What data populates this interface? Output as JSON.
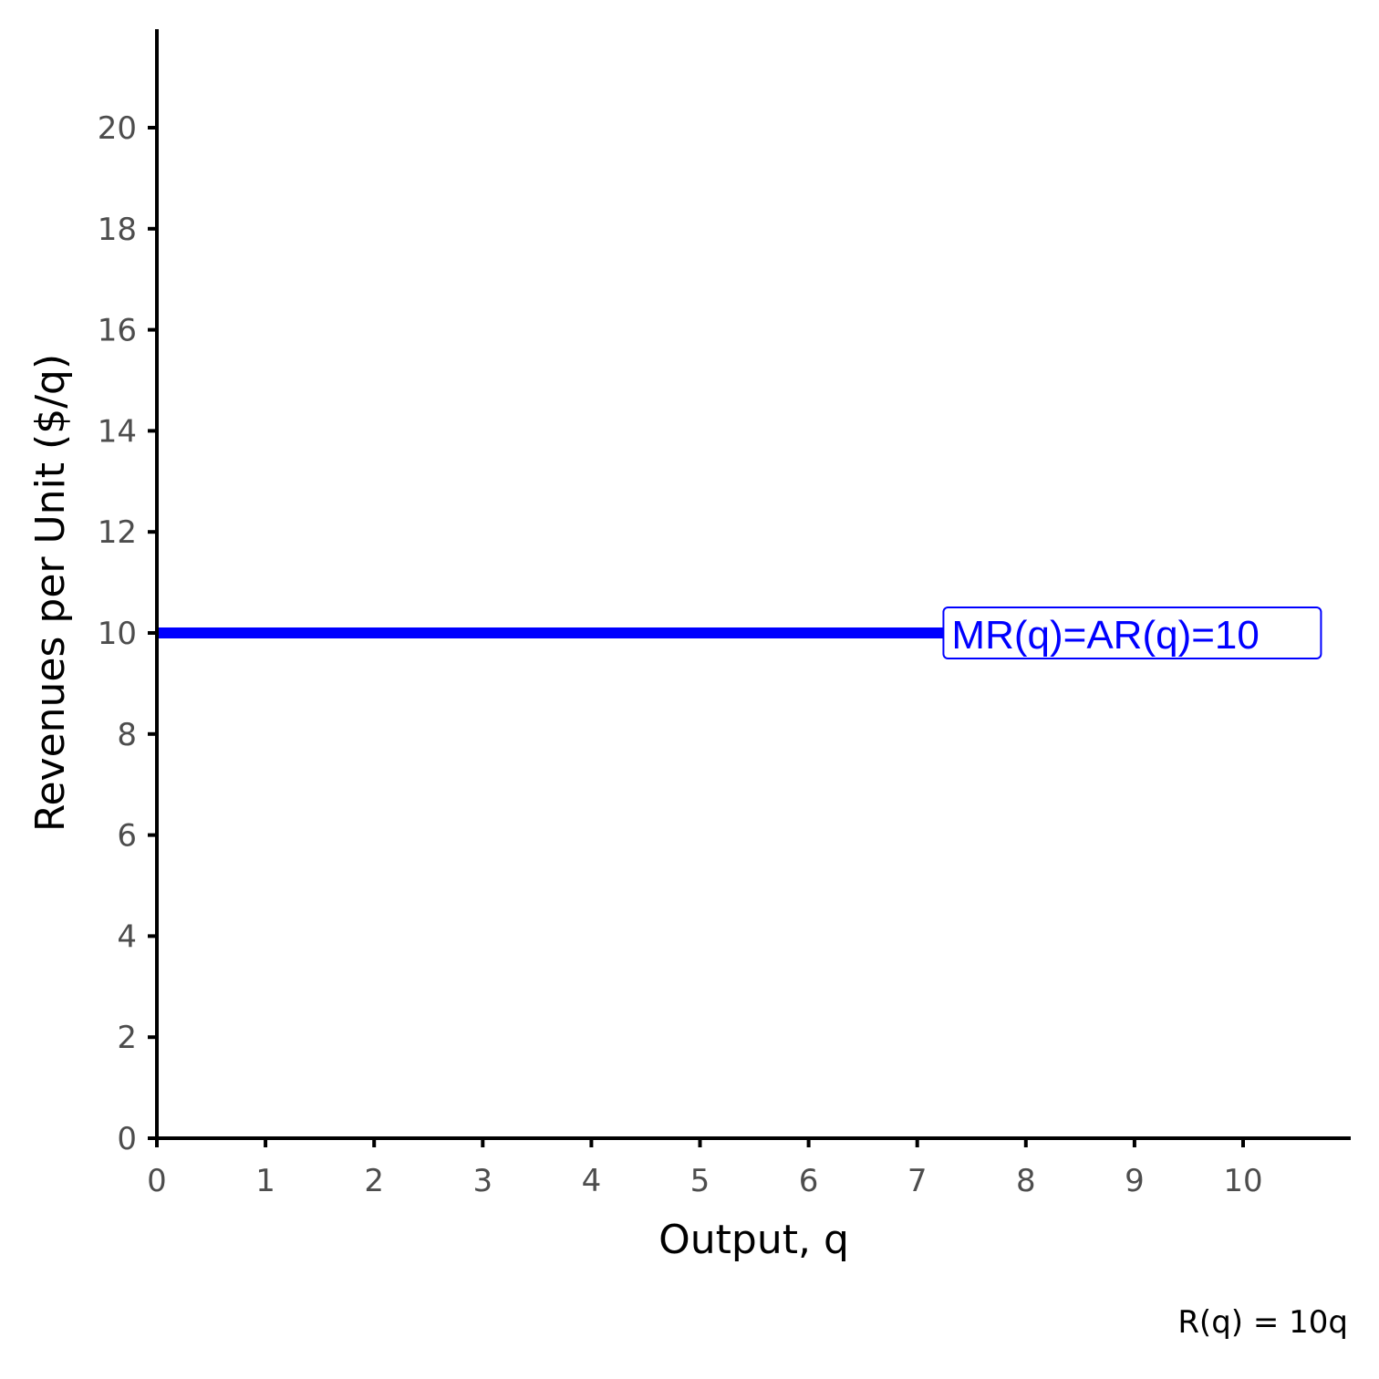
{
  "chart_data": {
    "type": "line",
    "xlabel": "Output, q",
    "ylabel": "Revenues per Unit ($/q)",
    "xlim": [
      0,
      11
    ],
    "ylim": [
      0,
      22
    ],
    "x_ticks": [
      "0",
      "1",
      "2",
      "3",
      "4",
      "5",
      "6",
      "7",
      "8",
      "9",
      "10"
    ],
    "y_ticks": [
      "0",
      "2",
      "4",
      "6",
      "8",
      "10",
      "12",
      "14",
      "16",
      "18",
      "20"
    ],
    "grid": false,
    "series": [
      {
        "name": "MR(q)=AR(q)=10",
        "color": "#0000ff",
        "x": [
          0,
          7.3
        ],
        "y": [
          10,
          10
        ]
      }
    ],
    "caption": "R(q) = 10q"
  }
}
